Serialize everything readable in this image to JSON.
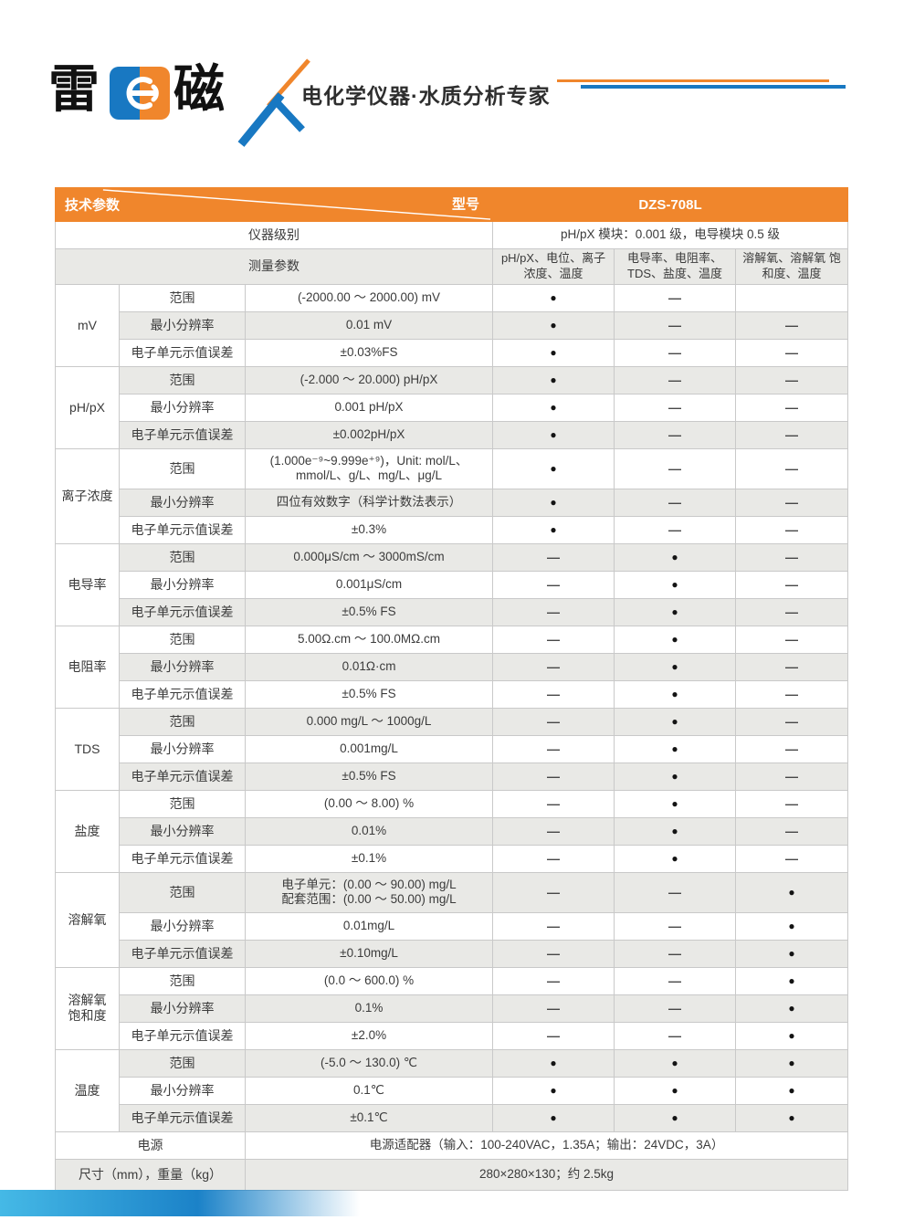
{
  "brand": {
    "logo_text_left": "雷",
    "logo_text_right": "磁",
    "tagline": "电化学仪器·水质分析专家",
    "colors": {
      "blue": "#1878c2",
      "orange": "#f0862c"
    }
  },
  "table": {
    "tech_params_label": "技术参数",
    "model_label": "型号",
    "model_value": "DZS-708L",
    "instrument_level": {
      "label": "仪器级别",
      "value": "pH/pX 模块：0.001 级，电导模块 0.5 级"
    },
    "measure_params": {
      "label": "测量参数",
      "columns": [
        "pH/pX、电位、离子\n浓度、温度",
        "电导率、电阻率、\nTDS、盐度、温度",
        "溶解氧、溶解氧\n饱和度、温度"
      ]
    },
    "groups": [
      {
        "name": "mV",
        "rows": [
          {
            "label": "范围",
            "value": "(-2000.00 ～ 2000.00) mV",
            "marks": [
              "●",
              "—",
              ""
            ]
          },
          {
            "label": "最小分辨率",
            "value": "0.01 mV",
            "marks": [
              "●",
              "—",
              "—"
            ]
          },
          {
            "label": "电子单元示值误差",
            "value": "±0.03%FS",
            "marks": [
              "●",
              "—",
              "—"
            ]
          }
        ]
      },
      {
        "name": "pH/pX",
        "rows": [
          {
            "label": "范围",
            "value": "(-2.000 ～ 20.000) pH/pX",
            "marks": [
              "●",
              "—",
              "—"
            ]
          },
          {
            "label": "最小分辨率",
            "value": "0.001 pH/pX",
            "marks": [
              "●",
              "—",
              "—"
            ]
          },
          {
            "label": "电子单元示值误差",
            "value": "±0.002pH/pX",
            "marks": [
              "●",
              "—",
              "—"
            ]
          }
        ]
      },
      {
        "name": "离子浓度",
        "rows": [
          {
            "label": "范围",
            "value": "(1.000e⁻⁹~9.999e⁺⁹)，Unit: mol/L、\nmmol/L、g/L、mg/L、μg/L",
            "marks": [
              "●",
              "—",
              "—"
            ],
            "tall": true
          },
          {
            "label": "最小分辨率",
            "value": "四位有效数字（科学计数法表示）",
            "marks": [
              "●",
              "—",
              "—"
            ]
          },
          {
            "label": "电子单元示值误差",
            "value": "±0.3%",
            "marks": [
              "●",
              "—",
              "—"
            ]
          }
        ]
      },
      {
        "name": "电导率",
        "rows": [
          {
            "label": "范围",
            "value": "0.000μS/cm ～ 3000mS/cm",
            "marks": [
              "—",
              "●",
              "—"
            ]
          },
          {
            "label": "最小分辨率",
            "value": "0.001μS/cm",
            "marks": [
              "—",
              "●",
              "—"
            ]
          },
          {
            "label": "电子单元示值误差",
            "value": "±0.5% FS",
            "marks": [
              "—",
              "●",
              "—"
            ]
          }
        ]
      },
      {
        "name": "电阻率",
        "rows": [
          {
            "label": "范围",
            "value": "5.00Ω.cm ～ 100.0MΩ.cm",
            "marks": [
              "—",
              "●",
              "—"
            ]
          },
          {
            "label": "最小分辨率",
            "value": "0.01Ω·cm",
            "marks": [
              "—",
              "●",
              "—"
            ]
          },
          {
            "label": "电子单元示值误差",
            "value": "±0.5% FS",
            "marks": [
              "—",
              "●",
              "—"
            ]
          }
        ]
      },
      {
        "name": "TDS",
        "rows": [
          {
            "label": "范围",
            "value": "0.000 mg/L ～ 1000g/L",
            "marks": [
              "—",
              "●",
              "—"
            ]
          },
          {
            "label": "最小分辨率",
            "value": "0.001mg/L",
            "marks": [
              "—",
              "●",
              "—"
            ]
          },
          {
            "label": "电子单元示值误差",
            "value": "±0.5% FS",
            "marks": [
              "—",
              "●",
              "—"
            ]
          }
        ]
      },
      {
        "name": "盐度",
        "rows": [
          {
            "label": "范围",
            "value": "(0.00 ～ 8.00) %",
            "marks": [
              "—",
              "●",
              "—"
            ]
          },
          {
            "label": "最小分辨率",
            "value": "0.01%",
            "marks": [
              "—",
              "●",
              "—"
            ]
          },
          {
            "label": "电子单元示值误差",
            "value": "±0.1%",
            "marks": [
              "—",
              "●",
              "—"
            ]
          }
        ]
      },
      {
        "name": "溶解氧",
        "rows": [
          {
            "label": "范围",
            "value": "电子单元：(0.00 ～ 90.00) mg/L\n配套范围：(0.00 ～ 50.00) mg/L",
            "marks": [
              "—",
              "—",
              "●"
            ],
            "tall": true
          },
          {
            "label": "最小分辨率",
            "value": "0.01mg/L",
            "marks": [
              "—",
              "—",
              "●"
            ]
          },
          {
            "label": "电子单元示值误差",
            "value": "±0.10mg/L",
            "marks": [
              "—",
              "—",
              "●"
            ]
          }
        ]
      },
      {
        "name": "溶解氧\n饱和度",
        "rows": [
          {
            "label": "范围",
            "value": "(0.0 ～ 600.0) %",
            "marks": [
              "—",
              "—",
              "●"
            ]
          },
          {
            "label": "最小分辨率",
            "value": "0.1%",
            "marks": [
              "—",
              "—",
              "●"
            ]
          },
          {
            "label": "电子单元示值误差",
            "value": "±2.0%",
            "marks": [
              "—",
              "—",
              "●"
            ]
          }
        ]
      },
      {
        "name": "温度",
        "rows": [
          {
            "label": "范围",
            "value": "(-5.0 ～ 130.0) ℃",
            "marks": [
              "●",
              "●",
              "●"
            ]
          },
          {
            "label": "最小分辨率",
            "value": "0.1℃",
            "marks": [
              "●",
              "●",
              "●"
            ]
          },
          {
            "label": "电子单元示值误差",
            "value": "±0.1℃",
            "marks": [
              "●",
              "●",
              "●"
            ]
          }
        ]
      }
    ],
    "footer_rows": [
      {
        "label": "电源",
        "value": "电源适配器（输入：100-240VAC，1.35A；输出：24VDC，3A）"
      },
      {
        "label": "尺寸（mm），重量（kg）",
        "value": "280×280×130；约 2.5kg"
      }
    ]
  }
}
